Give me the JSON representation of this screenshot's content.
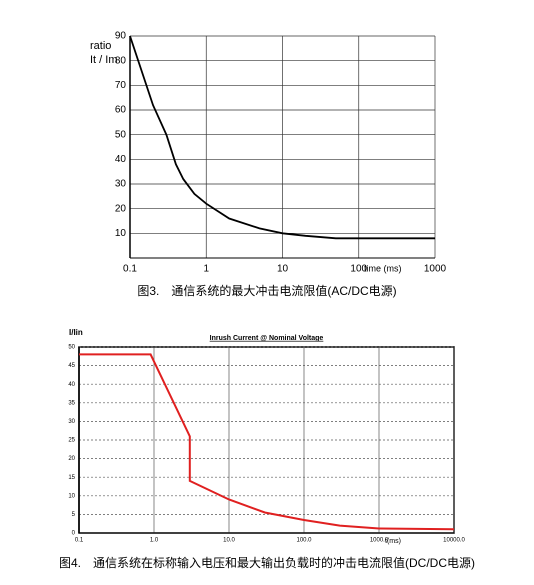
{
  "chart_data": [
    {
      "type": "line",
      "caption": "图3.　通信系统的最大冲击电流限值(AC/DC电源)",
      "y_label": [
        "ratio",
        "It / Im"
      ],
      "x_label": "time (ms)",
      "xscale": "log",
      "xlim": [
        0.1,
        1000
      ],
      "xticks": [
        0.1,
        1,
        10,
        100,
        1000
      ],
      "ylim": [
        0,
        90
      ],
      "yticks": [
        10,
        20,
        30,
        40,
        50,
        60,
        70,
        80,
        90
      ],
      "grid": true,
      "x": [
        0.1,
        0.2,
        0.3,
        0.4,
        0.5,
        0.7,
        1,
        2,
        5,
        10,
        20,
        50,
        100,
        1000
      ],
      "series": [
        {
          "color": "#000000",
          "values": [
            90,
            62,
            50,
            38,
            32,
            26,
            22,
            16,
            12,
            10,
            9,
            8,
            8,
            8
          ]
        }
      ]
    },
    {
      "type": "line",
      "title": "Inrush Current @ Nominal Voltage",
      "caption": "图4.　通信系统在标称输入电压和最大输出负载时的冲击电流限值(DC/DC电源)",
      "y_label": [
        "I/Iin"
      ],
      "x_label": "t(ms)",
      "xscale": "log",
      "xlim": [
        0.1,
        10000
      ],
      "xticks": [
        0.1,
        {
          "value": 1,
          "label": "1.0"
        },
        {
          "value": 10,
          "label": "10.0"
        },
        {
          "value": 100,
          "label": "100.0"
        },
        {
          "value": 1000,
          "label": "1000.0"
        },
        {
          "value": 10000,
          "label": "10000.0"
        }
      ],
      "ylim": [
        0,
        50
      ],
      "yticks": [
        0,
        5,
        10,
        15,
        20,
        25,
        30,
        35,
        40,
        45,
        50
      ],
      "grid": true,
      "x": [
        0.1,
        0.9,
        3,
        3,
        10,
        30,
        100,
        300,
        1000,
        10000
      ],
      "series": [
        {
          "color": "#e02020",
          "values": [
            48,
            48,
            26,
            14,
            9,
            5.5,
            3.5,
            2,
            1.2,
            1
          ]
        }
      ]
    }
  ]
}
